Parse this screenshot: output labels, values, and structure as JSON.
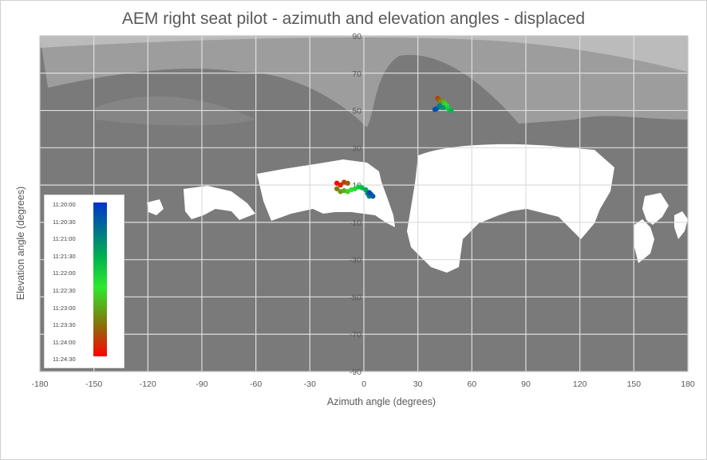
{
  "chart_data": {
    "type": "scatter",
    "title": "AEM right seat pilot - azimuth and elevation angles - displaced",
    "xlabel": "Azimuth angle (degrees)",
    "ylabel": "Elevation angle (degrees)",
    "xlim": [
      -180,
      180
    ],
    "ylim": [
      -90,
      90
    ],
    "x_ticks": [
      "-180",
      "-150",
      "-120",
      "-90",
      "-60",
      "-30",
      "0",
      "30",
      "60",
      "90",
      "120",
      "150",
      "180"
    ],
    "y_ticks": [
      "90",
      "70",
      "50",
      "30",
      "10",
      "-10",
      "-30",
      "-50",
      "-70",
      "-90"
    ],
    "grid": true,
    "background": "cockpit obstruction panorama (grey = structure, white = window openings)",
    "legend": {
      "placement": "left",
      "type": "colorbar",
      "labels": [
        "11:20:00",
        "11:20:30",
        "11:21:00",
        "11:21:30",
        "11:22:00",
        "11:22:30",
        "11:23:00",
        "11:23:30",
        "11:24:00",
        "11:24:30"
      ],
      "colors": [
        "#0033cc",
        "#00b050",
        "#2ee82e",
        "#8a6f0a",
        "#ff0000"
      ]
    },
    "series": [
      {
        "points": [
          {
            "x": -15,
            "y": 11,
            "t": "11:24:30"
          },
          {
            "x": -13,
            "y": 10,
            "t": "11:24:15"
          },
          {
            "x": -11,
            "y": 11.5,
            "t": "11:24:00"
          },
          {
            "x": -9,
            "y": 11,
            "t": "11:23:45"
          },
          {
            "x": -15,
            "y": 8,
            "t": "11:23:30"
          },
          {
            "x": -13,
            "y": 6.5,
            "t": "11:23:15"
          },
          {
            "x": -11,
            "y": 7,
            "t": "11:23:00"
          },
          {
            "x": -9,
            "y": 6.5,
            "t": "11:22:45"
          },
          {
            "x": -7,
            "y": 7.5,
            "t": "11:22:30"
          },
          {
            "x": -5,
            "y": 8,
            "t": "11:22:15"
          },
          {
            "x": -3,
            "y": 9,
            "t": "11:22:00"
          },
          {
            "x": -1,
            "y": 8.5,
            "t": "11:21:45"
          },
          {
            "x": 1,
            "y": 7.5,
            "t": "11:21:30"
          },
          {
            "x": 2,
            "y": 5.5,
            "t": "11:21:15"
          },
          {
            "x": 3,
            "y": 4,
            "t": "11:21:00"
          },
          {
            "x": 4,
            "y": 5,
            "t": "11:20:45"
          },
          {
            "x": 5,
            "y": 4,
            "t": "11:20:30"
          },
          {
            "x": 3,
            "y": 6,
            "t": "11:20:15"
          },
          {
            "x": 41,
            "y": 56.5,
            "t": "11:24:00"
          },
          {
            "x": 42,
            "y": 55.5,
            "t": "11:23:40"
          },
          {
            "x": 43,
            "y": 55,
            "t": "11:23:20"
          },
          {
            "x": 44.5,
            "y": 54.5,
            "t": "11:23:00"
          },
          {
            "x": 45,
            "y": 53.5,
            "t": "11:22:40"
          },
          {
            "x": 46,
            "y": 52.5,
            "t": "11:22:20"
          },
          {
            "x": 47,
            "y": 51,
            "t": "11:22:00"
          },
          {
            "x": 48.5,
            "y": 50,
            "t": "11:21:40"
          },
          {
            "x": 44,
            "y": 51.5,
            "t": "11:21:20"
          },
          {
            "x": 42,
            "y": 52.5,
            "t": "11:21:00"
          },
          {
            "x": 40.5,
            "y": 51,
            "t": "11:20:40"
          },
          {
            "x": 39.5,
            "y": 50.5,
            "t": "11:20:20"
          }
        ]
      }
    ]
  }
}
